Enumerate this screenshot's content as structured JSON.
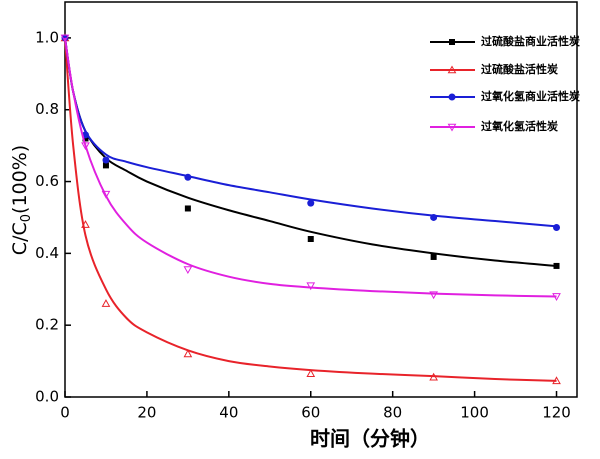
{
  "chart_data": {
    "type": "scatter",
    "xlabel": "时间（分钟）",
    "ylabel": [
      "C/C",
      "0",
      "(100%)"
    ],
    "x": [
      0,
      5,
      10,
      30,
      60,
      90,
      120
    ],
    "fit_x": [
      0,
      2,
      5,
      10,
      15,
      20,
      30,
      40,
      50,
      60,
      75,
      90,
      105,
      120
    ],
    "series": [
      {
        "name": "过硫酸盐商业活性炭",
        "color": "#000000",
        "marker": "square",
        "values": [
          1.0,
          0.72,
          0.645,
          0.525,
          0.44,
          0.39,
          0.365
        ],
        "fit_values": [
          1.0,
          0.85,
          0.74,
          0.665,
          0.63,
          0.6,
          0.555,
          0.52,
          0.49,
          0.46,
          0.425,
          0.4,
          0.38,
          0.365
        ]
      },
      {
        "name": "过硫酸盐活性炭",
        "color": "#e8232a",
        "marker": "triangle-up",
        "values": [
          1.0,
          0.48,
          0.26,
          0.12,
          0.065,
          0.055,
          0.045
        ],
        "fit_values": [
          1.0,
          0.7,
          0.45,
          0.3,
          0.22,
          0.18,
          0.13,
          0.1,
          0.085,
          0.075,
          0.065,
          0.058,
          0.05,
          0.045
        ]
      },
      {
        "name": "过氧化氢商业活性炭",
        "color": "#1a1fd6",
        "marker": "circle",
        "values": [
          1.0,
          0.73,
          0.66,
          0.612,
          0.54,
          0.5,
          0.472
        ],
        "fit_values": [
          1.0,
          0.85,
          0.74,
          0.675,
          0.655,
          0.64,
          0.615,
          0.59,
          0.57,
          0.55,
          0.525,
          0.505,
          0.49,
          0.475
        ]
      },
      {
        "name": "过氧化氢活性炭",
        "color": "#e020e0",
        "marker": "triangle-down",
        "values": [
          1.0,
          0.7,
          0.565,
          0.355,
          0.31,
          0.285,
          0.28
        ],
        "fit_values": [
          1.0,
          0.85,
          0.7,
          0.56,
          0.48,
          0.43,
          0.37,
          0.335,
          0.315,
          0.305,
          0.295,
          0.288,
          0.283,
          0.28
        ]
      }
    ],
    "xlim": [
      0,
      125
    ],
    "ylim": [
      0,
      1.1
    ],
    "xticks": [
      0,
      20,
      40,
      60,
      80,
      100,
      120
    ],
    "yticks": [
      {
        "value": 0,
        "label": "0.0"
      },
      0.2,
      0.4,
      0.6,
      0.8,
      {
        "value": 1,
        "label": "1.0"
      }
    ],
    "legend": "upper right"
  }
}
